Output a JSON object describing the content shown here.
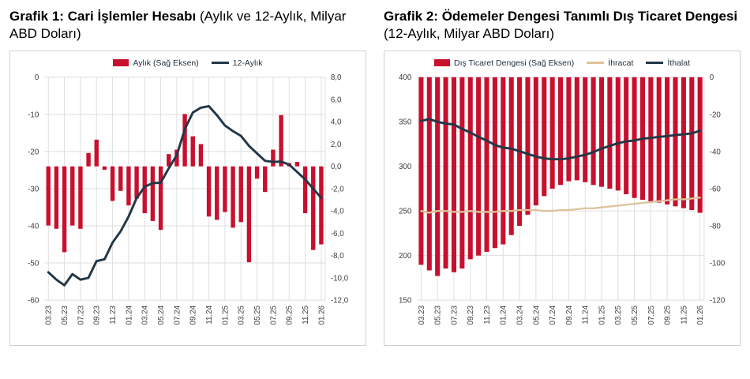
{
  "charts": [
    {
      "title_bold": "Grafik 1: Cari İşlemler Hesabı",
      "title_rest": " (Aylık ve 12-Aylık, Milyar ABD Doları)"
    },
    {
      "title_bold": "Grafik 2: Ödemeler Dengesi Tanımlı Dış Ticaret Dengesi",
      "title_rest": " (12-Aylık, Milyar ABD Doları)"
    }
  ],
  "colors": {
    "bar_red": "#c8102e",
    "dark_navy": "#223747",
    "tan": "#ddc39c",
    "grid": "#dedede",
    "axis_text": "#3d3d3d"
  },
  "chart_data": [
    {
      "type": "bar",
      "title": "Grafik 1: Cari İşlemler Hesabı (Aylık ve 12-Aylık, Milyar ABD Doları)",
      "categories": [
        "03.23",
        "04.23",
        "05.23",
        "06.23",
        "07.23",
        "08.23",
        "09.23",
        "10.23",
        "11.23",
        "12.23",
        "01.24",
        "02.24",
        "03.24",
        "04.24",
        "05.24",
        "06.24",
        "07.24",
        "08.24",
        "09.24",
        "10.24",
        "11.24",
        "12.24",
        "01.25",
        "02.25",
        "03.25",
        "04.25",
        "05.25",
        "06.25",
        "07.25",
        "08.25",
        "09.25",
        "10.25",
        "11.25",
        "12.25",
        "01.26"
      ],
      "x_tick_labels": [
        "03.23",
        "05.23",
        "07.23",
        "09.23",
        "11.23",
        "01.24",
        "03.24",
        "05.24",
        "07.24",
        "09.24",
        "11.24",
        "01.25",
        "03.25",
        "05.25",
        "07.25",
        "09.25",
        "11.25",
        "01.26"
      ],
      "left_axis": {
        "min": -60,
        "max": 0,
        "ticks": [
          "0",
          "-10",
          "-20",
          "-30",
          "-40",
          "-50",
          "-60"
        ]
      },
      "right_axis": {
        "min": -12,
        "max": 8,
        "ticks": [
          "8,0",
          "6,0",
          "4,0",
          "2,0",
          "0,0",
          "-2,0",
          "-4,0",
          "-6,0",
          "-8,0",
          "-10,0",
          "-12,0"
        ]
      },
      "series": [
        {
          "name": "Aylık (Sağ Eksen)",
          "type": "bar",
          "axis": "right",
          "color": "#c8102e",
          "values": [
            -5.3,
            -5.6,
            -7.7,
            -5.3,
            -5.6,
            1.2,
            2.4,
            -0.3,
            -3.1,
            -2.2,
            -3.5,
            -2.9,
            -4.2,
            -4.9,
            -5.7,
            1.1,
            1.5,
            4.7,
            2.7,
            2.0,
            -4.5,
            -4.8,
            -4.1,
            -5.5,
            -5.0,
            -8.6,
            -1.1,
            -2.3,
            1.5,
            4.6,
            0.3,
            0.4,
            -4.2,
            -7.5,
            -7.0
          ]
        },
        {
          "name": "12-Aylık",
          "type": "line",
          "axis": "left",
          "color": "#223747",
          "values": [
            -52.5,
            -54.5,
            -56.0,
            -53.0,
            -54.5,
            -54.0,
            -49.5,
            -49.0,
            -44.5,
            -41.5,
            -37.5,
            -32.5,
            -29.5,
            -28.5,
            -28.4,
            -24.5,
            -21.0,
            -14.0,
            -9.5,
            -8.2,
            -7.8,
            -10.2,
            -13.0,
            -14.5,
            -15.8,
            -18.5,
            -20.5,
            -22.5,
            -22.8,
            -22.7,
            -23.5,
            -25.5,
            -27.5,
            -30.0,
            -32.5
          ]
        }
      ],
      "grid": true,
      "legend_position": "top"
    },
    {
      "type": "bar",
      "title": "Grafik 2: Ödemeler Dengesi Tanımlı Dış Ticaret Dengesi (12-Aylık, Milyar ABD Doları)",
      "categories": [
        "03.23",
        "04.23",
        "05.23",
        "06.23",
        "07.23",
        "08.23",
        "09.23",
        "10.23",
        "11.23",
        "12.23",
        "01.24",
        "02.24",
        "03.24",
        "04.24",
        "05.24",
        "06.24",
        "07.24",
        "08.24",
        "09.24",
        "10.24",
        "11.24",
        "12.24",
        "01.25",
        "02.25",
        "03.25",
        "04.25",
        "05.25",
        "06.25",
        "07.25",
        "08.25",
        "09.25",
        "10.25",
        "11.25",
        "12.25",
        "01.26"
      ],
      "x_tick_labels": [
        "03.23",
        "05.23",
        "07.23",
        "09.23",
        "11.23",
        "01.24",
        "03.24",
        "05.24",
        "07.24",
        "09.24",
        "11.24",
        "01.25",
        "03.25",
        "05.25",
        "07.25",
        "09.25",
        "11.25",
        "01.26"
      ],
      "left_axis": {
        "min": 150,
        "max": 400,
        "ticks": [
          "400",
          "350",
          "300",
          "250",
          "200",
          "150"
        ]
      },
      "right_axis": {
        "min": -120,
        "max": 0,
        "ticks": [
          "0",
          "-20",
          "-40",
          "-60",
          "-80",
          "-100",
          "-120"
        ]
      },
      "series": [
        {
          "name": "Dış Ticaret Dengesi (Sağ Eksen)",
          "type": "bar",
          "axis": "right",
          "color": "#c8102e",
          "values": [
            -101,
            -104,
            -107,
            -103,
            -105,
            -103,
            -98,
            -96,
            -94,
            -92,
            -90,
            -85,
            -80,
            -74,
            -69,
            -64,
            -60,
            -58,
            -56,
            -55.5,
            -56.5,
            -58,
            -59,
            -60,
            -61,
            -63,
            -65,
            -66,
            -67,
            -67.5,
            -68.5,
            -69.5,
            -70.5,
            -71.5,
            -73
          ]
        },
        {
          "name": "İhracat",
          "type": "line",
          "axis": "left",
          "color": "#ddc39c",
          "values": [
            250,
            248,
            250,
            250,
            249,
            249,
            250,
            249,
            249,
            249,
            250,
            250,
            251,
            251,
            251,
            250,
            250,
            251,
            251,
            252,
            253,
            253,
            254,
            255,
            256,
            257,
            258,
            259,
            260,
            261,
            262,
            263,
            263,
            264,
            265
          ]
        },
        {
          "name": "İthalat",
          "type": "line",
          "axis": "left",
          "color": "#223747",
          "values": [
            351,
            353,
            350,
            348,
            347,
            342,
            338,
            333,
            329,
            324,
            321,
            320,
            317,
            314,
            311,
            309,
            308,
            308,
            309,
            311,
            313,
            316,
            320,
            323,
            326,
            328,
            329,
            331,
            332,
            333,
            334,
            335,
            336,
            337,
            340
          ]
        }
      ],
      "grid": true,
      "legend_position": "top"
    }
  ]
}
